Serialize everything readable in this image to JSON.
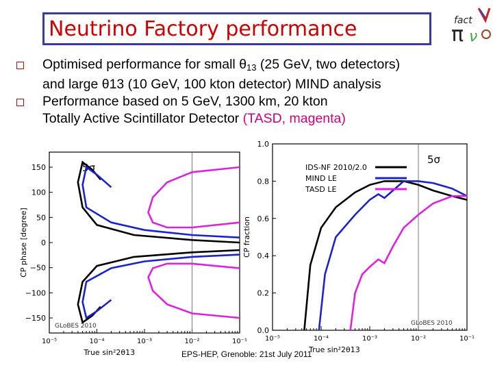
{
  "title": "Neutrino Factory performance",
  "bullets": [
    {
      "parts": [
        "Optimised performance for small ",
        "θ",
        "13",
        " (25 GeV, two detectors)"
      ],
      "line2": "and large θ13 (10 GeV, 100 kton detector) MIND analysis"
    },
    {
      "line1": "Performance based on 5 GeV, 1300 km, 20 kton",
      "line2a": "Totally Active Scintillator Detector ",
      "line2b": "(TASD, magenta)"
    }
  ],
  "footer": "EPS-HEP, Grenoble: 21st July 2011",
  "logo": {
    "text": "fact"
  },
  "colors": {
    "title": "#cc0000",
    "black": "#000000",
    "blue": "#1a22cc",
    "magenta": "#dd22dd",
    "box": "#3a3a9a"
  },
  "chart_data": [
    {
      "type": "line",
      "ylabel": "CP phase [degree]",
      "xlabel": "True sin²2θ13",
      "x_scale": "log",
      "xlim": [
        1e-05,
        0.1
      ],
      "ylim": [
        -180,
        180
      ],
      "yticks": [
        150,
        100,
        50,
        0,
        -50,
        -100,
        -150
      ],
      "yticklabels": [
        "150",
        "100",
        "50",
        "0",
        "−50",
        "−100",
        "−150"
      ],
      "xticklabels": [
        "10⁻⁵",
        "10⁻⁴",
        "10⁻³",
        "10⁻²",
        "10⁻¹"
      ],
      "annotation": "5σ",
      "watermark": "GLoBES 2010",
      "vline": 0.01,
      "series": [
        {
          "name": "IDS-NF 2010/2.0",
          "color": "#000000",
          "x": [
            0.00012,
            8e-05,
            5e-05,
            4e-05,
            5e-05,
            0.0001,
            0.0006,
            0.01,
            0.1
          ],
          "y": [
            125,
            145,
            160,
            120,
            70,
            35,
            15,
            5,
            0
          ]
        },
        {
          "name": "MIND LE",
          "color": "#1a22cc",
          "x": [
            0.0002,
            0.0001,
            6e-05,
            5e-05,
            6e-05,
            0.0002,
            0.001,
            0.01,
            0.1
          ],
          "y": [
            110,
            135,
            150,
            115,
            70,
            40,
            25,
            15,
            10
          ]
        },
        {
          "name": "TASD LE",
          "color": "#dd22dd",
          "x": [
            0.1,
            0.01,
            0.003,
            0.0015,
            0.0012,
            0.0015,
            0.003,
            0.01,
            0.1
          ],
          "y": [
            150,
            140,
            120,
            90,
            60,
            40,
            30,
            30,
            40
          ]
        }
      ]
    },
    {
      "type": "line",
      "ylabel": "CP fraction",
      "xlabel": "True sin²2θ13",
      "x_scale": "log",
      "xlim": [
        1e-05,
        0.1
      ],
      "ylim": [
        0,
        1
      ],
      "yticks": [
        0,
        0.2,
        0.4,
        0.6,
        0.8,
        1.0
      ],
      "yticklabels": [
        "0.0",
        "0.2",
        "0.4",
        "0.6",
        "0.8",
        "1.0"
      ],
      "xticklabels": [
        "10⁻⁵",
        "10⁻⁴",
        "10⁻³",
        "10⁻²",
        "10⁻¹"
      ],
      "annotation": "5σ",
      "watermark": "GLoBES 2010",
      "vline": 0.01,
      "series": [
        {
          "name": "IDS-NF 2010/2.0",
          "color": "#000000",
          "x": [
            4.5e-05,
            6e-05,
            0.0001,
            0.0002,
            0.0005,
            0.001,
            0.002,
            0.005,
            0.01,
            0.02,
            0.05,
            0.1
          ],
          "y": [
            0.0,
            0.35,
            0.55,
            0.66,
            0.74,
            0.78,
            0.8,
            0.8,
            0.78,
            0.75,
            0.72,
            0.7
          ]
        },
        {
          "name": "MIND LE",
          "color": "#1a22cc",
          "x": [
            9e-05,
            0.00012,
            0.0002,
            0.0005,
            0.001,
            0.0015,
            0.002,
            0.003,
            0.005,
            0.01,
            0.02,
            0.05,
            0.1
          ],
          "y": [
            0.0,
            0.3,
            0.5,
            0.62,
            0.7,
            0.73,
            0.71,
            0.75,
            0.8,
            0.8,
            0.79,
            0.76,
            0.72
          ]
        },
        {
          "name": "TASD LE",
          "color": "#dd22dd",
          "x": [
            0.0004,
            0.0005,
            0.0007,
            0.001,
            0.0015,
            0.002,
            0.003,
            0.005,
            0.01,
            0.02,
            0.05,
            0.1
          ],
          "y": [
            0.0,
            0.2,
            0.3,
            0.34,
            0.38,
            0.36,
            0.45,
            0.55,
            0.62,
            0.68,
            0.72,
            0.72
          ]
        }
      ]
    }
  ]
}
